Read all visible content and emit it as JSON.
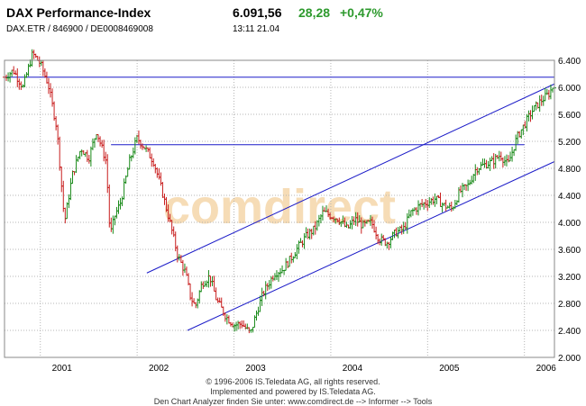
{
  "header": {
    "title": "DAX Performance-Index",
    "price": "6.091,56",
    "change": "28,28",
    "change_pct": "+0,47%",
    "identifiers": "DAX.ETR  /  846900  /  DE0008469008",
    "timestamp": "13:11  21.04"
  },
  "watermark": "comdirect",
  "footer": {
    "line1": "© 1996-2006 IS.Teledata AG, all rights reserved.",
    "line2": "Implemented and powered by IS.Teledata AG.",
    "line3": "Den Chart Analyzer finden Sie unter: www.comdirect.de --> Informer --> Tools"
  },
  "colors": {
    "up_bar": "#1a8a1a",
    "down_bar": "#c81e1e",
    "trend_line": "#1c1cc8",
    "grid": "#b4b4b4",
    "change_positive": "#2e9a2e"
  },
  "chart_data": {
    "type": "ohlc",
    "x_unit": "year",
    "xlim": [
      2000.63,
      2006.31
    ],
    "ylim": [
      2000,
      6400
    ],
    "grid": true,
    "y_ticks": [
      2000,
      2400,
      2800,
      3200,
      3600,
      4000,
      4400,
      4800,
      5200,
      5600,
      6000,
      6400
    ],
    "y_tick_labels": [
      "2.000",
      "2.400",
      "2.800",
      "3.200",
      "3.600",
      "4.000",
      "4.400",
      "4.800",
      "5.200",
      "5.600",
      "6.000",
      "6.400"
    ],
    "x_ticks": [
      2001,
      2002,
      2003,
      2004,
      2005,
      2006
    ],
    "x_tick_labels": [
      "2001",
      "2002",
      "2003",
      "2004",
      "2005",
      "2006"
    ],
    "series": [
      {
        "x": [
          2000.63,
          2000.72,
          2000.82,
          2000.92,
          2001.0,
          2001.08,
          2001.17,
          2001.25,
          2001.33,
          2001.42,
          2001.5,
          2001.58,
          2001.68,
          2001.72,
          2001.77,
          2001.83,
          2001.92,
          2002.0,
          2002.08,
          2002.17,
          2002.25,
          2002.33,
          2002.42,
          2002.5,
          2002.55,
          2002.6,
          2002.67,
          2002.75,
          2002.82,
          2002.92,
          2003.0,
          2003.08,
          2003.17,
          2003.22,
          2003.3,
          2003.42,
          2003.5,
          2003.58,
          2003.67,
          2003.75,
          2003.83,
          2003.92,
          2004.0,
          2004.08,
          2004.17,
          2004.25,
          2004.33,
          2004.42,
          2004.5,
          2004.58,
          2004.67,
          2004.75,
          2004.83,
          2004.92,
          2005.0,
          2005.08,
          2005.17,
          2005.25,
          2005.33,
          2005.42,
          2005.5,
          2005.58,
          2005.67,
          2005.75,
          2005.83,
          2005.92,
          2006.0,
          2006.08,
          2006.17,
          2006.25,
          2006.31
        ],
        "y": [
          6150,
          6250,
          6000,
          6500,
          6350,
          6050,
          5400,
          4000,
          4700,
          5100,
          4950,
          5350,
          4900,
          3800,
          4100,
          4300,
          4900,
          5250,
          5100,
          4900,
          4500,
          4050,
          3500,
          3250,
          2900,
          2750,
          3100,
          3200,
          2850,
          2600,
          2480,
          2500,
          2350,
          2600,
          2950,
          3250,
          3300,
          3450,
          3650,
          3800,
          3900,
          4150,
          4100,
          4050,
          3900,
          4050,
          3950,
          4000,
          3750,
          3700,
          3850,
          3900,
          4150,
          4250,
          4300,
          4350,
          4250,
          4200,
          4450,
          4550,
          4800,
          4850,
          4900,
          5000,
          4850,
          5250,
          5450,
          5650,
          5800,
          5900,
          6050
        ],
        "name": ""
      }
    ],
    "trend_lines_label": ""
  }
}
